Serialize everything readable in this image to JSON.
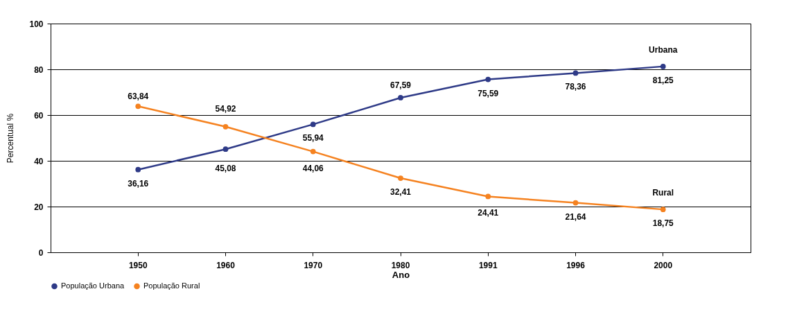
{
  "chart_data": {
    "type": "line",
    "xlabel": "Ano",
    "ylabel": "Percentual %",
    "categories": [
      "1950",
      "1960",
      "1970",
      "1980",
      "1991",
      "1996",
      "2000"
    ],
    "series": [
      {
        "name": "População Urbana",
        "color": "#2e3a87",
        "values": [
          36.16,
          45.08,
          55.94,
          67.59,
          75.59,
          78.36,
          81.25
        ],
        "value_labels": [
          "36,16",
          "45,08",
          "55,94",
          "67,59",
          "75,59",
          "78,36",
          "81,25"
        ]
      },
      {
        "name": "População Rural",
        "color": "#f58220",
        "values": [
          63.84,
          54.92,
          44.06,
          32.41,
          24.41,
          21.64,
          18.75
        ],
        "value_labels": [
          "63,84",
          "54,92",
          "44,06",
          "32,41",
          "24,41",
          "21,64",
          "18,75"
        ]
      }
    ],
    "annotations": [
      "Urbana",
      "Rural"
    ],
    "ylim": [
      0,
      100
    ],
    "yticks": [
      0,
      20,
      40,
      60,
      80,
      100
    ],
    "grid": "y",
    "legend": "bottom",
    "marker": "circle",
    "line_style": "solid"
  }
}
